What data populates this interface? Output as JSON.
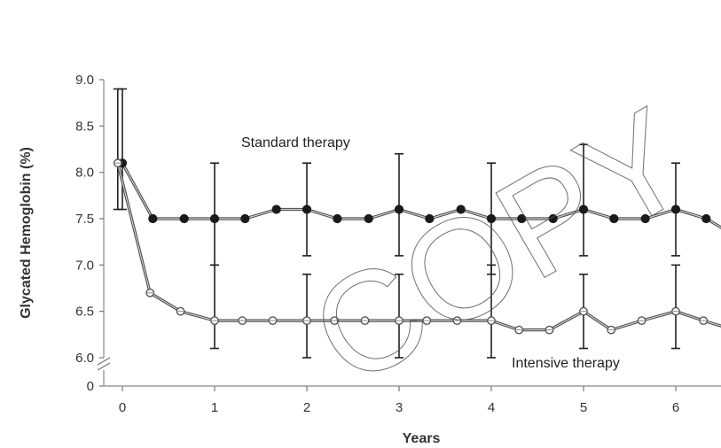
{
  "chart_data": {
    "type": "line",
    "ylabel": "Glycated Hemoglobin (%)",
    "xlabel": "Years",
    "x_ticks": [
      "0",
      "1",
      "2",
      "3",
      "4",
      "5",
      "6"
    ],
    "y_ticks": [
      "9.0",
      "8.5",
      "8.0",
      "7.5",
      "7.0",
      "6.5",
      "6.0",
      "0"
    ],
    "ylim": [
      6.0,
      9.0
    ],
    "xlim": [
      -0.2,
      6.5
    ],
    "y_axis_break": true,
    "series": [
      {
        "name": "Standard therapy",
        "marker": "filled-circle",
        "x": [
          0,
          0.33,
          0.67,
          1,
          1.33,
          1.67,
          2,
          2.33,
          2.67,
          3,
          3.33,
          3.67,
          4,
          4.33,
          4.67,
          5,
          5.33,
          5.67,
          6,
          6.33,
          6.67
        ],
        "y": [
          8.1,
          7.5,
          7.5,
          7.5,
          7.5,
          7.6,
          7.6,
          7.5,
          7.5,
          7.6,
          7.5,
          7.6,
          7.5,
          7.5,
          7.5,
          7.6,
          7.5,
          7.5,
          7.6,
          7.5,
          7.3
        ],
        "error_bars": [
          {
            "x": 0,
            "low": 7.6,
            "high": 8.9
          },
          {
            "x": 1,
            "low": 7.0,
            "high": 8.1
          },
          {
            "x": 2,
            "low": 7.1,
            "high": 8.1
          },
          {
            "x": 3,
            "low": 7.1,
            "high": 8.2
          },
          {
            "x": 4,
            "low": 6.9,
            "high": 8.1
          },
          {
            "x": 5,
            "low": 7.1,
            "high": 8.3
          },
          {
            "x": 6,
            "low": 7.1,
            "high": 8.1
          }
        ]
      },
      {
        "name": "Intensive therapy",
        "marker": "open-circle",
        "x": [
          -0.05,
          0.3,
          0.63,
          1,
          1.3,
          1.63,
          2,
          2.3,
          2.63,
          3,
          3.3,
          3.63,
          4,
          4.3,
          4.63,
          5,
          5.3,
          5.63,
          6,
          6.3,
          6.63
        ],
        "y": [
          8.1,
          6.7,
          6.5,
          6.4,
          6.4,
          6.4,
          6.4,
          6.4,
          6.4,
          6.4,
          6.4,
          6.4,
          6.4,
          6.3,
          6.3,
          6.5,
          6.3,
          6.4,
          6.5,
          6.4,
          6.3
        ],
        "error_bars": [
          {
            "x": -0.05,
            "low": 7.6,
            "high": 8.9
          },
          {
            "x": 1,
            "low": 6.1,
            "high": 7.0
          },
          {
            "x": 2,
            "low": 6.0,
            "high": 6.9
          },
          {
            "x": 3,
            "low": 6.0,
            "high": 6.9
          },
          {
            "x": 4,
            "low": 6.0,
            "high": 7.0
          },
          {
            "x": 5,
            "low": 6.1,
            "high": 6.9
          },
          {
            "x": 6,
            "low": 6.1,
            "high": 7.0
          }
        ]
      }
    ],
    "annotations": [
      {
        "text": "Standard therapy",
        "series": 0
      },
      {
        "text": "Intensive therapy",
        "series": 1
      }
    ]
  },
  "watermark": {
    "text": "COPY",
    "color": "#555555"
  }
}
